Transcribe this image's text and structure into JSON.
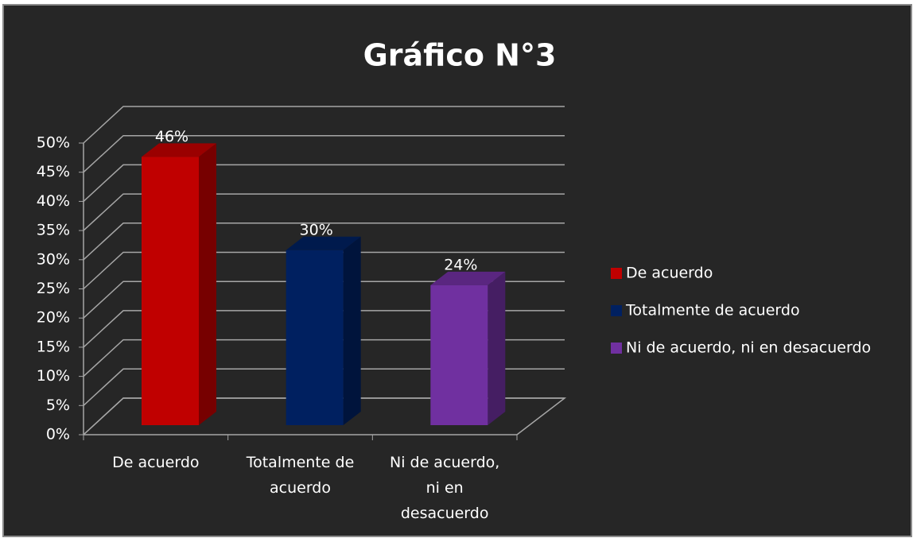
{
  "chart_data": {
    "type": "bar3d",
    "title": "Gráfico N°3",
    "categories": [
      "De acuerdo",
      "Totalmente de acuerdo",
      "Ni de acuerdo, ni en desacuerdo"
    ],
    "values": [
      46,
      30,
      24
    ],
    "value_labels": [
      "46%",
      "30%",
      "24%"
    ],
    "colors": [
      "#c00000",
      "#002060",
      "#7030a0"
    ],
    "ylim": [
      0,
      50
    ],
    "yticks": [
      {
        "value": 0,
        "label": "0%"
      },
      {
        "value": 5,
        "label": "5%"
      },
      {
        "value": 10,
        "label": "10%"
      },
      {
        "value": 15,
        "label": "15%"
      },
      {
        "value": 20,
        "label": "20%"
      },
      {
        "value": 25,
        "label": "25%"
      },
      {
        "value": 30,
        "label": "30%"
      },
      {
        "value": 35,
        "label": "35%"
      },
      {
        "value": 40,
        "label": "40%"
      },
      {
        "value": 45,
        "label": "45%"
      },
      {
        "value": 50,
        "label": "50%"
      }
    ],
    "grid": true,
    "legend": "right"
  }
}
